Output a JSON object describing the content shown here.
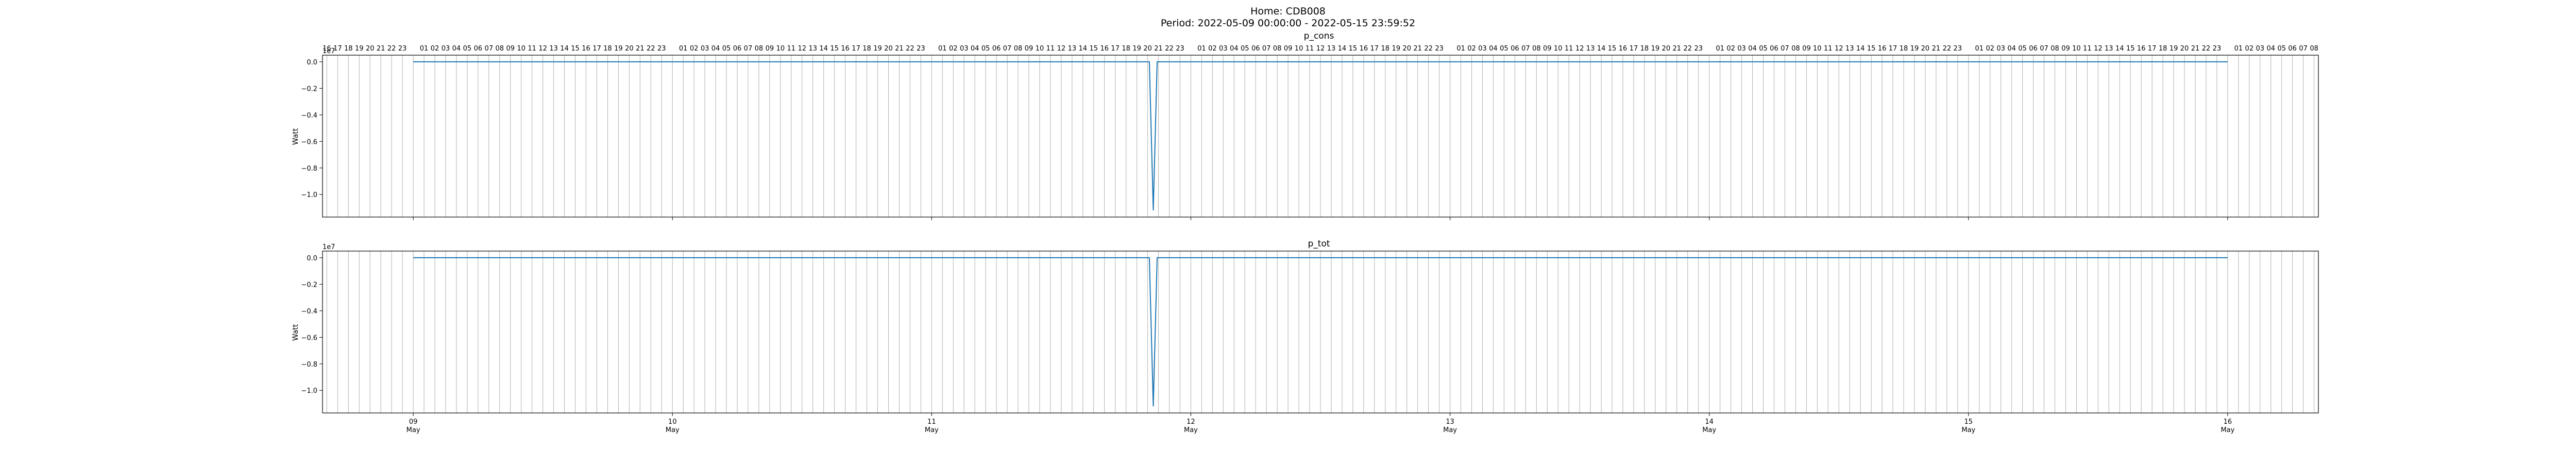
{
  "figure": {
    "title_line1": "Home: CDB008",
    "title_line2": "Period: 2022-05-09 00:00:00 - 2022-05-15 23:59:52"
  },
  "colors": {
    "line": "#1f77b4",
    "grid": "#b0b0b0",
    "axes": "#000000"
  },
  "chart_data": [
    {
      "type": "line",
      "title": "p_cons",
      "ylabel": "Watt",
      "offset_label": "1e7",
      "x_unit": "day of May 2022",
      "xlim": [
        8.65,
        16.35
      ],
      "ylim": [
        -1.17,
        0.05
      ],
      "yticks": [
        0.0,
        -0.2,
        -0.4,
        -0.6,
        -0.8,
        -1.0
      ],
      "yticklabels": [
        "0.0",
        "−0.2",
        "−0.4",
        "−0.6",
        "−0.8",
        "−1.0"
      ],
      "xticks": [
        9,
        10,
        11,
        12,
        13,
        14,
        15,
        16
      ],
      "xticklabels_day": [
        "09",
        "10",
        "11",
        "12",
        "13",
        "14",
        "15",
        "16"
      ],
      "xticklabel_month": "May",
      "show_xticklabels": false,
      "hour_labels_top": true,
      "grid": "vertical hourly",
      "x": [
        9.0,
        11.84,
        11.855,
        11.87,
        11.885,
        16.0
      ],
      "y": [
        0.0,
        0.0,
        -1.12,
        0.0,
        0.0,
        0.0
      ]
    },
    {
      "type": "line",
      "title": "p_tot",
      "ylabel": "Watt",
      "offset_label": "1e7",
      "x_unit": "day of May 2022",
      "xlim": [
        8.65,
        16.35
      ],
      "ylim": [
        -1.17,
        0.05
      ],
      "yticks": [
        0.0,
        -0.2,
        -0.4,
        -0.6,
        -0.8,
        -1.0
      ],
      "yticklabels": [
        "0.0",
        "−0.2",
        "−0.4",
        "−0.6",
        "−0.8",
        "−1.0"
      ],
      "xticks": [
        9,
        10,
        11,
        12,
        13,
        14,
        15,
        16
      ],
      "xticklabels_day": [
        "09",
        "10",
        "11",
        "12",
        "13",
        "14",
        "15",
        "16"
      ],
      "xticklabel_month": "May",
      "show_xticklabels": true,
      "hour_labels_top": false,
      "grid": "vertical hourly",
      "x": [
        9.0,
        11.84,
        11.855,
        11.87,
        11.885,
        16.0
      ],
      "y": [
        0.0,
        0.0,
        -1.12,
        0.0,
        0.0,
        0.0
      ]
    }
  ]
}
